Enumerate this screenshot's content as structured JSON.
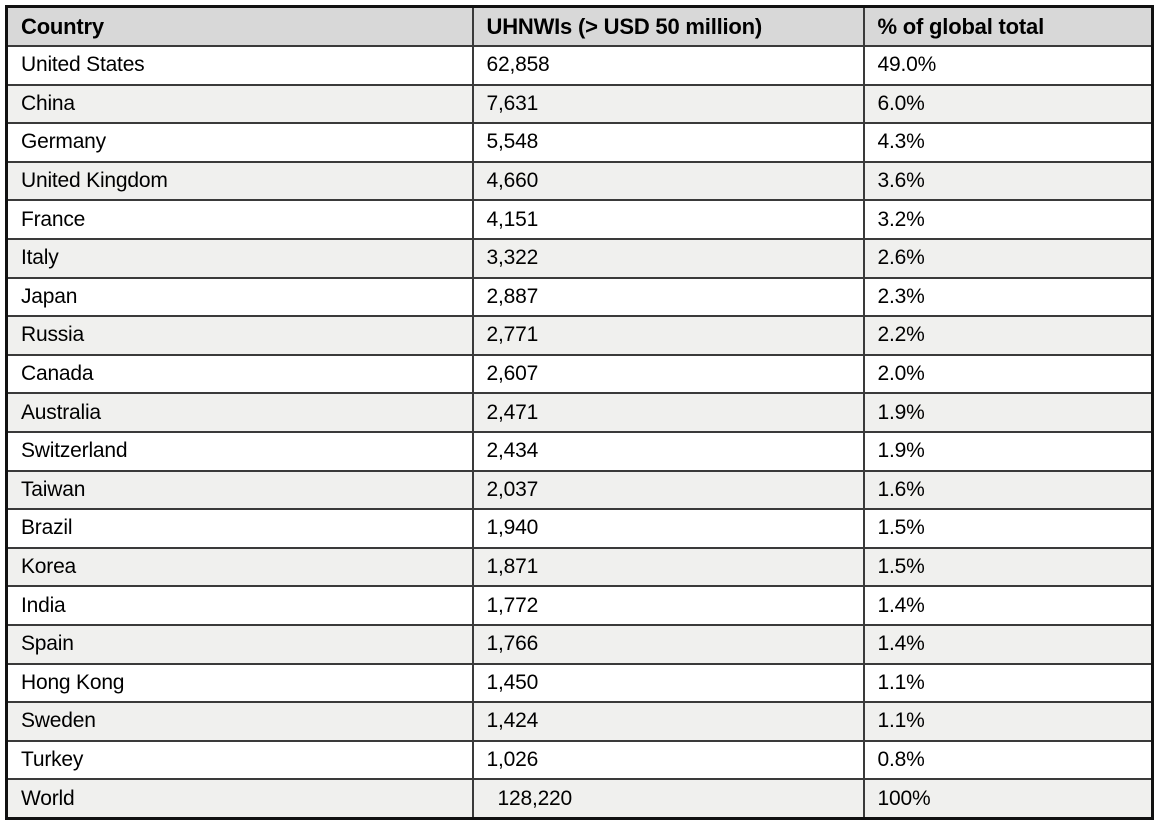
{
  "table": {
    "columns": [
      "Country",
      "UHNWIs (> USD 50 million)",
      "% of global total"
    ],
    "rows": [
      {
        "country": "United States",
        "uhnwis": "62,858",
        "pct": "49.0%"
      },
      {
        "country": "China",
        "uhnwis": "7,631",
        "pct": "6.0%"
      },
      {
        "country": "Germany",
        "uhnwis": "5,548",
        "pct": "4.3%"
      },
      {
        "country": "United Kingdom",
        "uhnwis": "4,660",
        "pct": "3.6%"
      },
      {
        "country": "France",
        "uhnwis": "4,151",
        "pct": "3.2%"
      },
      {
        "country": "Italy",
        "uhnwis": "3,322",
        "pct": "2.6%"
      },
      {
        "country": "Japan",
        "uhnwis": "2,887",
        "pct": "2.3%"
      },
      {
        "country": "Russia",
        "uhnwis": "2,771",
        "pct": "2.2%"
      },
      {
        "country": "Canada",
        "uhnwis": "2,607",
        "pct": "2.0%"
      },
      {
        "country": "Australia",
        "uhnwis": "2,471",
        "pct": "1.9%"
      },
      {
        "country": "Switzerland",
        "uhnwis": "2,434",
        "pct": "1.9%"
      },
      {
        "country": "Taiwan",
        "uhnwis": "2,037",
        "pct": "1.6%"
      },
      {
        "country": "Brazil",
        "uhnwis": "1,940",
        "pct": "1.5%"
      },
      {
        "country": "Korea",
        "uhnwis": "1,871",
        "pct": "1.5%"
      },
      {
        "country": "India",
        "uhnwis": "1,772",
        "pct": "1.4%"
      },
      {
        "country": "Spain",
        "uhnwis": "1,766",
        "pct": "1.4%"
      },
      {
        "country": "Hong Kong",
        "uhnwis": "1,450",
        "pct": "1.1%"
      },
      {
        "country": "Sweden",
        "uhnwis": "1,424",
        "pct": "1.1%"
      },
      {
        "country": "Turkey",
        "uhnwis": "1,026",
        "pct": "0.8%"
      },
      {
        "country": "World",
        "uhnwis": "128,220",
        "pct": "100%",
        "indent": true
      }
    ],
    "colors": {
      "header_bg": "#d8d8d8",
      "row_bg": "#ffffff",
      "row_alt_bg": "#f0f0ee",
      "border_inner": "#3a3a3a",
      "border_outer": "#111111",
      "text": "#000000"
    }
  }
}
